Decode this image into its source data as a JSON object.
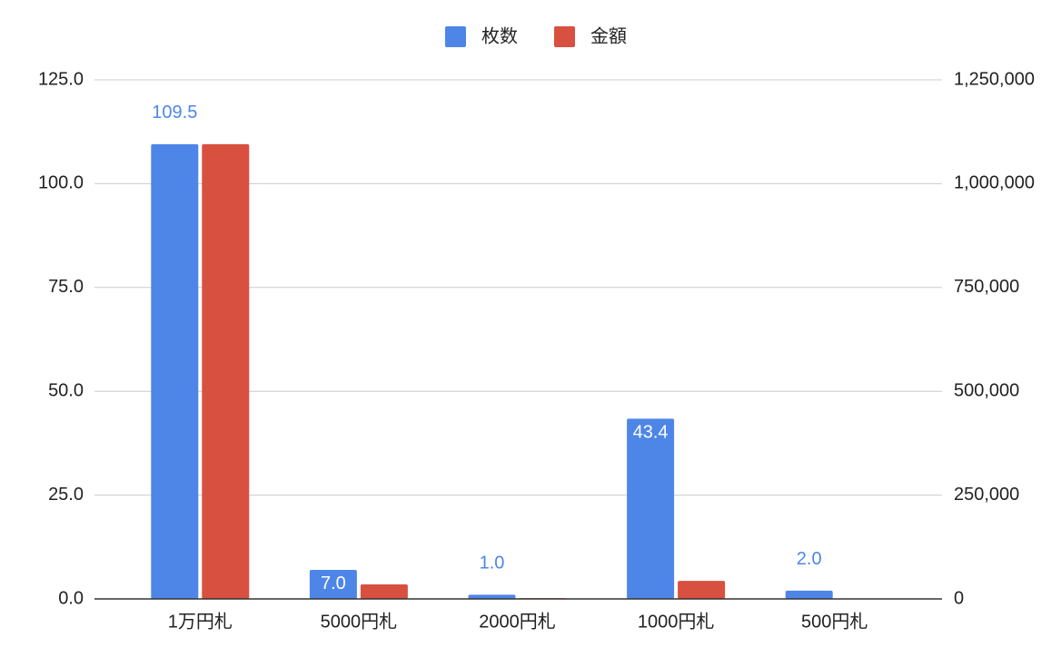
{
  "chart_data": {
    "type": "bar",
    "categories": [
      "1万円札",
      "5000円札",
      "2000円札",
      "1000円札",
      "500円札"
    ],
    "series": [
      {
        "name": "枚数",
        "color": "#4e86e8",
        "values": [
          109.5,
          7.0,
          1.0,
          43.4,
          2.0
        ],
        "value_labels": [
          "109.5",
          "7.0",
          "1.0",
          "43.4",
          "2.0"
        ]
      },
      {
        "name": "金額",
        "color": "#d8503f",
        "axis": "y2",
        "values": [
          1095000,
          35000,
          2000,
          43400,
          1000
        ]
      }
    ],
    "ylim": [
      0,
      125
    ],
    "yticks": [
      {
        "value": 0,
        "label": "0.0"
      },
      {
        "value": 25,
        "label": "25.0"
      },
      {
        "value": 50,
        "label": "50.0"
      },
      {
        "value": 75,
        "label": "75.0"
      },
      {
        "value": 100,
        "label": "100.0"
      },
      {
        "value": 125,
        "label": "125.0"
      }
    ],
    "y2lim": [
      0,
      1250000
    ],
    "y2ticks": [
      0,
      {
        "value": 250000,
        "label": "250,000"
      },
      {
        "value": 500000,
        "label": "500,000"
      },
      {
        "value": 750000,
        "label": "750,000"
      },
      {
        "value": 1000000,
        "label": "1,000,000"
      },
      {
        "value": 1250000,
        "label": "1,250,000"
      }
    ],
    "grid": true,
    "legend": "top"
  }
}
